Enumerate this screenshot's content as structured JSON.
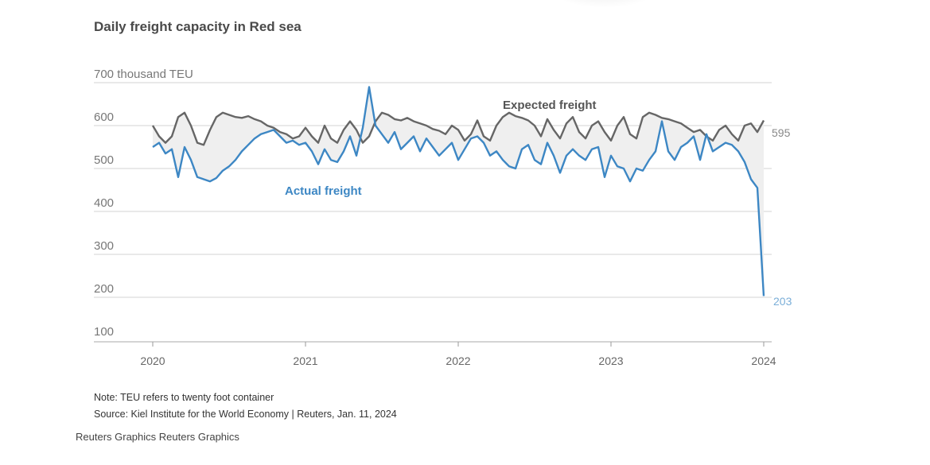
{
  "title": "Daily freight capacity in Red sea",
  "note": "Note: TEU refers to twenty foot container",
  "source": "Source: Kiel Institute for the World Economy | Reuters, Jan. 11, 2024",
  "credit": "Reuters Graphics Reuters Graphics",
  "chart_data": {
    "type": "line",
    "title": "Daily freight capacity in Red sea",
    "ylabel": "thousand TEU",
    "y_ticks": [
      {
        "value": 700,
        "label": "700 thousand TEU"
      },
      {
        "value": 600,
        "label": "600"
      },
      {
        "value": 500,
        "label": "500"
      },
      {
        "value": 400,
        "label": "400"
      },
      {
        "value": 300,
        "label": "300"
      },
      {
        "value": 200,
        "label": "200"
      },
      {
        "value": 100,
        "label": "100"
      }
    ],
    "x_ticks": [
      {
        "value": 2020,
        "label": "2020"
      },
      {
        "value": 2021,
        "label": "2021"
      },
      {
        "value": 2022,
        "label": "2022"
      },
      {
        "value": 2023,
        "label": "2023"
      },
      {
        "value": 2024,
        "label": "2024"
      }
    ],
    "xlim": [
      2020,
      2024
    ],
    "ylim": [
      100,
      700
    ],
    "grid": true,
    "x_start": 2020,
    "x_step_years": 0.041667,
    "series": [
      {
        "name": "Expected freight",
        "color": "#666666",
        "end_label": "595",
        "values": [
          600,
          575,
          560,
          575,
          620,
          630,
          600,
          560,
          555,
          590,
          620,
          630,
          625,
          620,
          618,
          622,
          615,
          610,
          600,
          595,
          585,
          580,
          570,
          575,
          595,
          575,
          560,
          600,
          570,
          560,
          590,
          610,
          590,
          560,
          575,
          610,
          630,
          625,
          615,
          612,
          618,
          610,
          605,
          600,
          592,
          588,
          580,
          600,
          590,
          565,
          580,
          612,
          575,
          565,
          600,
          620,
          630,
          622,
          618,
          612,
          600,
          575,
          615,
          590,
          570,
          605,
          620,
          585,
          570,
          600,
          610,
          585,
          565,
          600,
          620,
          580,
          570,
          620,
          630,
          625,
          618,
          615,
          610,
          605,
          595,
          585,
          590,
          575,
          565,
          590,
          600,
          580,
          565,
          600,
          605,
          585,
          612
        ]
      },
      {
        "name": "Actual freight",
        "color": "#3d87c4",
        "end_label": "203",
        "values": [
          550,
          560,
          535,
          545,
          480,
          550,
          520,
          480,
          475,
          470,
          478,
          495,
          505,
          520,
          540,
          555,
          570,
          580,
          585,
          590,
          575,
          560,
          565,
          555,
          560,
          540,
          510,
          545,
          520,
          515,
          540,
          575,
          530,
          595,
          690,
          600,
          580,
          560,
          585,
          545,
          560,
          575,
          540,
          570,
          550,
          530,
          545,
          560,
          520,
          545,
          570,
          575,
          560,
          530,
          540,
          520,
          505,
          500,
          545,
          555,
          520,
          510,
          560,
          530,
          490,
          530,
          545,
          530,
          520,
          545,
          550,
          480,
          530,
          505,
          500,
          470,
          500,
          495,
          520,
          540,
          610,
          540,
          520,
          550,
          560,
          575,
          520,
          580,
          540,
          550,
          560,
          555,
          540,
          515,
          475,
          455,
          203
        ]
      }
    ],
    "annotations": [
      {
        "text": "Expected freight",
        "series": "Expected freight"
      },
      {
        "text": "Actual freight",
        "series": "Actual freight"
      }
    ],
    "fill_between": {
      "color": "#efefef"
    }
  }
}
